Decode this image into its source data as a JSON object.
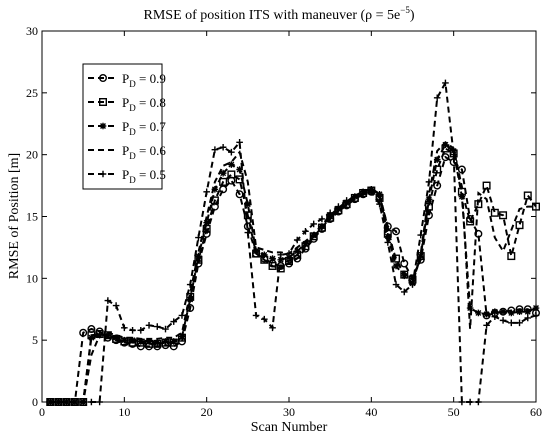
{
  "chart_data": {
    "type": "line",
    "title": "RMSE of position ITS with maneuver (ρ = 5e",
    "title_sup": "−5",
    "title_end": ")",
    "xlabel": "Scan Number",
    "ylabel": "RMSE of Position [m]",
    "xlim": [
      0,
      60
    ],
    "ylim": [
      0,
      30
    ],
    "xticks": [
      0,
      10,
      20,
      30,
      40,
      50,
      60
    ],
    "yticks": [
      0,
      5,
      10,
      15,
      20,
      25,
      30
    ],
    "grid": false,
    "legend_position": "top-left",
    "series": [
      {
        "name": "P",
        "name_sub": "D",
        "name_rest": " = 0.9",
        "marker": "circle",
        "x": [
          1,
          2,
          3,
          4,
          5,
          6,
          7,
          8,
          9,
          10,
          11,
          12,
          13,
          14,
          15,
          16,
          17,
          18,
          19,
          20,
          21,
          22,
          23,
          24,
          25,
          26,
          27,
          28,
          29,
          30,
          31,
          32,
          33,
          34,
          35,
          36,
          37,
          38,
          39,
          40,
          41,
          42,
          43,
          44,
          45,
          46,
          47,
          48,
          49,
          50,
          51,
          52,
          53,
          54,
          55,
          56,
          57,
          58,
          59,
          60
        ],
        "y": [
          0,
          0,
          0,
          0,
          5.6,
          5.9,
          5.7,
          5.2,
          5.0,
          4.8,
          4.7,
          4.5,
          4.5,
          4.5,
          4.6,
          4.5,
          4.9,
          7.6,
          11.2,
          13.6,
          15.8,
          17.2,
          17.9,
          16.8,
          14.2,
          12.0,
          11.6,
          11.2,
          11.0,
          11.2,
          11.6,
          12.4,
          13.2,
          14.0,
          14.8,
          15.4,
          15.9,
          16.4,
          16.8,
          17.0,
          16.6,
          14.2,
          13.8,
          11.2,
          10.0,
          11.5,
          15.1,
          17.5,
          19.8,
          19.4,
          18.8,
          14.8,
          13.6,
          7.0,
          7.2,
          7.3,
          7.4,
          7.5,
          7.5,
          7.2
        ]
      },
      {
        "name": "P",
        "name_sub": "D",
        "name_rest": " = 0.8",
        "marker": "square",
        "x": [
          1,
          2,
          3,
          4,
          5,
          6,
          7,
          8,
          9,
          10,
          11,
          12,
          13,
          14,
          15,
          16,
          17,
          18,
          19,
          20,
          21,
          22,
          23,
          24,
          25,
          26,
          27,
          28,
          29,
          30,
          31,
          32,
          33,
          34,
          35,
          36,
          37,
          38,
          39,
          40,
          41,
          42,
          43,
          44,
          45,
          46,
          47,
          48,
          49,
          50,
          51,
          52,
          53,
          54,
          55,
          56,
          57,
          58,
          59,
          60
        ],
        "y": [
          0,
          0,
          0,
          0,
          0,
          5.4,
          5.5,
          5.4,
          5.1,
          4.9,
          4.8,
          4.8,
          4.7,
          4.7,
          4.8,
          4.8,
          5.2,
          8.5,
          11.5,
          14.0,
          16.3,
          17.8,
          18.4,
          18.0,
          15.1,
          12.0,
          11.5,
          11.0,
          10.8,
          11.4,
          11.9,
          12.6,
          13.4,
          14.1,
          14.9,
          15.5,
          16.0,
          16.5,
          16.9,
          17.1,
          16.5,
          13.6,
          11.6,
          10.3,
          9.9,
          11.8,
          15.8,
          18.8,
          20.5,
          20.1,
          17.0,
          14.6,
          16.0,
          17.5,
          15.3,
          15.1,
          11.8,
          14.3,
          16.7,
          15.8
        ]
      },
      {
        "name": "P",
        "name_sub": "D",
        "name_rest": " = 0.7",
        "marker": "asterisk",
        "x": [
          1,
          2,
          3,
          4,
          5,
          6,
          7,
          8,
          9,
          10,
          11,
          12,
          13,
          14,
          15,
          16,
          17,
          18,
          19,
          20,
          21,
          22,
          23,
          24,
          25,
          26,
          27,
          28,
          29,
          30,
          31,
          32,
          33,
          34,
          35,
          36,
          37,
          38,
          39,
          40,
          41,
          42,
          43,
          44,
          45,
          46,
          47,
          48,
          49,
          50,
          51,
          52,
          53,
          54,
          55,
          56,
          57,
          58,
          59,
          60
        ],
        "y": [
          0,
          0,
          0,
          0,
          0,
          5.2,
          5.4,
          5.4,
          5.2,
          5.0,
          5.0,
          4.9,
          4.9,
          4.8,
          4.9,
          4.9,
          5.3,
          8.3,
          11.8,
          14.5,
          17.2,
          18.5,
          19.2,
          18.8,
          16.0,
          12.2,
          11.9,
          11.6,
          11.5,
          11.7,
          12.2,
          12.8,
          13.5,
          14.2,
          15.0,
          15.6,
          16.1,
          16.6,
          17.0,
          17.2,
          16.8,
          13.4,
          11.0,
          10.2,
          9.6,
          11.8,
          16.4,
          19.6,
          20.8,
          20.3,
          16.6,
          7.6,
          7.2,
          7.1,
          7.3,
          7.3,
          7.2,
          7.3,
          7.3,
          7.6
        ]
      },
      {
        "name": "P",
        "name_sub": "D",
        "name_rest": " = 0.6",
        "marker": "none",
        "x": [
          1,
          2,
          3,
          4,
          5,
          6,
          7,
          8,
          9,
          10,
          11,
          12,
          13,
          14,
          15,
          16,
          17,
          18,
          19,
          20,
          21,
          22,
          23,
          24,
          25,
          26,
          27,
          28,
          29,
          30,
          31,
          32,
          33,
          34,
          35,
          36,
          37,
          38,
          39,
          40,
          41,
          42,
          43,
          44,
          45,
          46,
          47,
          48,
          49,
          50,
          51,
          52,
          53,
          54,
          55,
          56,
          57,
          58,
          59,
          60
        ],
        "y": [
          0,
          0,
          0,
          0,
          0,
          3.8,
          5.4,
          5.6,
          5.4,
          5.2,
          5.2,
          5.1,
          5.1,
          5.1,
          5.2,
          5.2,
          5.6,
          8.8,
          12.1,
          15.0,
          17.8,
          19.1,
          19.4,
          20.2,
          17.8,
          12.5,
          12.3,
          12.1,
          12.1,
          12.0,
          12.5,
          13.0,
          13.6,
          14.3,
          15.1,
          15.7,
          16.2,
          16.7,
          17.0,
          17.3,
          16.8,
          14.1,
          11.3,
          10.5,
          9.5,
          12.0,
          16.8,
          20.3,
          21.0,
          20.5,
          17.4,
          5.9,
          16.9,
          16.4,
          13.3,
          12.2,
          13.9,
          15.6,
          15.8,
          15.8
        ]
      },
      {
        "name": "P",
        "name_sub": "D",
        "name_rest": " = 0.5",
        "marker": "plus",
        "x": [
          1,
          2,
          3,
          4,
          5,
          6,
          7,
          8,
          9,
          10,
          11,
          12,
          13,
          14,
          15,
          16,
          17,
          18,
          19,
          20,
          21,
          22,
          23,
          24,
          25,
          26,
          27,
          28,
          29,
          30,
          31,
          32,
          33,
          34,
          35,
          36,
          37,
          38,
          39,
          40,
          41,
          42,
          43,
          44,
          45,
          46,
          47,
          48,
          49,
          50,
          51,
          52,
          53,
          54,
          55,
          56,
          57,
          58,
          59,
          60
        ],
        "y": [
          0,
          0,
          0,
          0,
          0,
          0,
          0,
          8.2,
          7.8,
          6.0,
          5.8,
          5.8,
          6.2,
          6.1,
          5.9,
          6.5,
          7.0,
          9.5,
          13.3,
          17.0,
          20.4,
          20.6,
          20.2,
          21.0,
          13.7,
          7.0,
          6.7,
          6.0,
          11.9,
          12.0,
          13.1,
          13.8,
          14.4,
          14.8,
          15.3,
          15.8,
          16.3,
          16.6,
          16.8,
          17.0,
          16.0,
          12.9,
          9.5,
          8.9,
          9.5,
          13.5,
          17.8,
          24.6,
          25.8,
          20.0,
          0,
          0,
          0,
          6.2,
          6.9,
          6.6,
          6.4,
          6.4,
          6.8,
          7.0
        ]
      }
    ]
  }
}
